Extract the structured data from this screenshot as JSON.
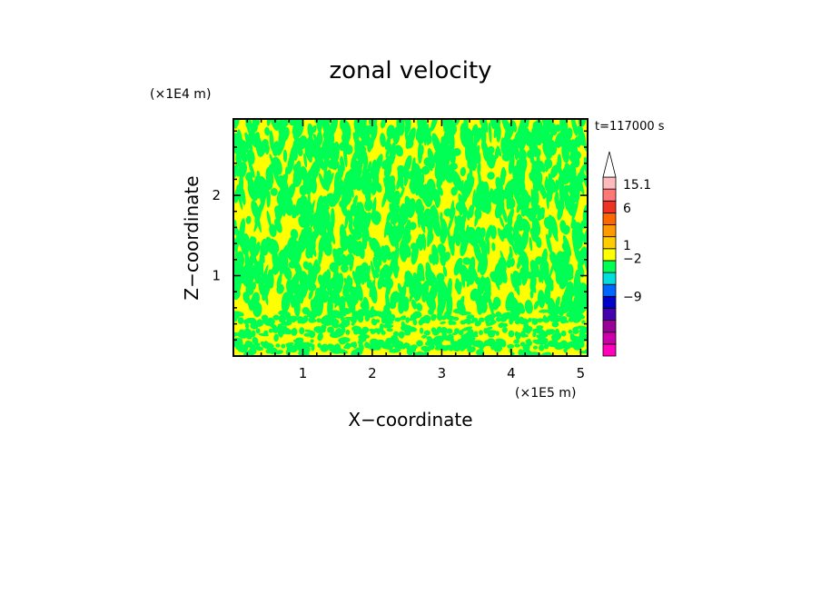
{
  "chart_data": {
    "type": "heatmap",
    "title": "zonal velocity",
    "xlabel": "X−coordinate",
    "ylabel": "Z−coordinate",
    "x_unit": "(×1E5 m)",
    "y_unit": "(×1E4 m)",
    "time_label": "t=117000 s",
    "xlim": [
      0,
      5.1
    ],
    "ylim": [
      0,
      2.95
    ],
    "x_ticks": [
      {
        "value": 1,
        "label": "1"
      },
      {
        "value": 2,
        "label": "2"
      },
      {
        "value": 3,
        "label": "3"
      },
      {
        "value": 4,
        "label": "4"
      },
      {
        "value": 5,
        "label": "5"
      }
    ],
    "y_ticks": [
      {
        "value": 1,
        "label": "1"
      },
      {
        "value": 2,
        "label": "2"
      }
    ],
    "field_colors": {
      "dominant_positive": "#ffff00",
      "dominant_negative": "#00ff55"
    },
    "colorbar": {
      "levels": [
        {
          "color": "#ff00bb"
        },
        {
          "color": "#cc00aa"
        },
        {
          "color": "#990099"
        },
        {
          "color": "#4400aa"
        },
        {
          "color": "#0000cc"
        },
        {
          "color": "#0066ff"
        },
        {
          "color": "#00dddd"
        },
        {
          "color": "#00ff55"
        },
        {
          "color": "#ffff00"
        },
        {
          "color": "#ffcc00"
        },
        {
          "color": "#ff9900"
        },
        {
          "color": "#ff6600"
        },
        {
          "color": "#ee3322"
        },
        {
          "color": "#ff7777"
        },
        {
          "color": "#ffbbbb"
        },
        {
          "color": "#ffffff"
        }
      ],
      "labels": [
        {
          "text": "15.1",
          "level": 14.4
        },
        {
          "text": "6",
          "level": 12.4
        },
        {
          "text": "1",
          "level": 9.3
        },
        {
          "text": "−2",
          "level": 8.2
        },
        {
          "text": "−9",
          "level": 5.0
        }
      ]
    }
  }
}
